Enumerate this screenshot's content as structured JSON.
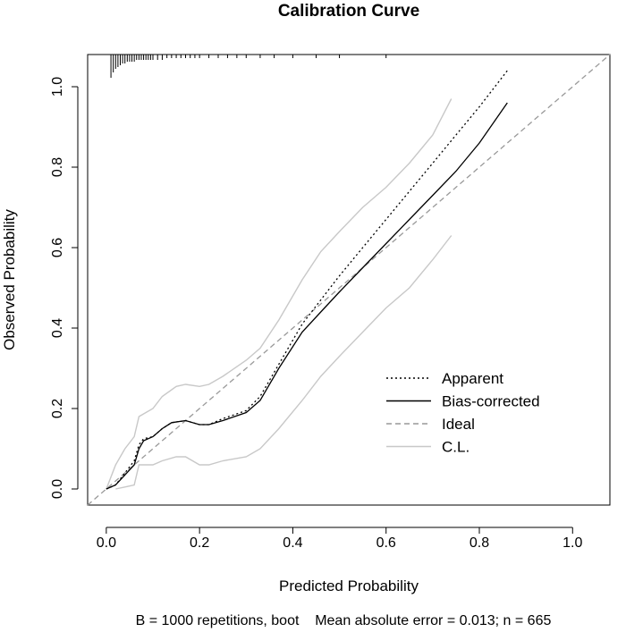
{
  "chart_data": {
    "type": "line",
    "title": "Calibration Curve",
    "xlabel": "Predicted Probability",
    "ylabel": "Observed Probability",
    "subtitle": "B = 1000 repetitions, boot    Mean absolute error = 0.013; n = 665",
    "xlim": [
      -0.04,
      1.08
    ],
    "ylim": [
      -0.04,
      1.08
    ],
    "x_ticks": [
      "0.0",
      "0.2",
      "0.4",
      "0.6",
      "0.8",
      "1.0"
    ],
    "y_ticks": [
      "0.0",
      "0.2",
      "0.4",
      "0.6",
      "0.8",
      "1.0"
    ],
    "grid": false,
    "legend_position": "bottom-right",
    "series": [
      {
        "name": "Apparent",
        "style": "dotted",
        "color": "#000000",
        "x": [
          0.0,
          0.02,
          0.04,
          0.06,
          0.07,
          0.08,
          0.1,
          0.12,
          0.14,
          0.17,
          0.2,
          0.22,
          0.25,
          0.3,
          0.33,
          0.37,
          0.42,
          0.46,
          0.5,
          0.55,
          0.6,
          0.65,
          0.7,
          0.75,
          0.8,
          0.86
        ],
        "y": [
          0.0,
          0.01,
          0.04,
          0.07,
          0.11,
          0.125,
          0.13,
          0.15,
          0.165,
          0.17,
          0.16,
          0.16,
          0.175,
          0.195,
          0.23,
          0.31,
          0.41,
          0.47,
          0.53,
          0.6,
          0.67,
          0.74,
          0.81,
          0.88,
          0.95,
          1.04
        ]
      },
      {
        "name": "Bias-corrected",
        "style": "solid",
        "color": "#000000",
        "x": [
          0.0,
          0.02,
          0.04,
          0.06,
          0.07,
          0.08,
          0.1,
          0.12,
          0.14,
          0.17,
          0.2,
          0.22,
          0.25,
          0.3,
          0.33,
          0.37,
          0.42,
          0.46,
          0.5,
          0.55,
          0.6,
          0.65,
          0.7,
          0.75,
          0.8,
          0.86
        ],
        "y": [
          0.0,
          0.01,
          0.035,
          0.06,
          0.1,
          0.12,
          0.13,
          0.15,
          0.165,
          0.17,
          0.16,
          0.16,
          0.17,
          0.19,
          0.22,
          0.3,
          0.39,
          0.44,
          0.49,
          0.55,
          0.61,
          0.67,
          0.73,
          0.79,
          0.86,
          0.96
        ]
      },
      {
        "name": "Ideal",
        "style": "dashed",
        "color": "#999999",
        "x": [
          -0.04,
          1.08
        ],
        "y": [
          -0.04,
          1.08
        ]
      },
      {
        "name": "C.L.",
        "style": "solid",
        "color": "#c8c8c8",
        "x": [
          0.0,
          0.02,
          0.04,
          0.06,
          0.07,
          0.1,
          0.12,
          0.15,
          0.17,
          0.2,
          0.22,
          0.25,
          0.3,
          0.33,
          0.37,
          0.42,
          0.46,
          0.5,
          0.55,
          0.6,
          0.65,
          0.7,
          0.74
        ],
        "y": [
          0.0,
          0.06,
          0.1,
          0.13,
          0.18,
          0.2,
          0.23,
          0.255,
          0.26,
          0.255,
          0.26,
          0.28,
          0.32,
          0.35,
          0.42,
          0.52,
          0.59,
          0.64,
          0.7,
          0.75,
          0.81,
          0.88,
          0.97
        ]
      },
      {
        "name": "C.L.",
        "style": "solid",
        "color": "#c8c8c8",
        "x": [
          0.02,
          0.04,
          0.06,
          0.07,
          0.1,
          0.12,
          0.15,
          0.17,
          0.2,
          0.22,
          0.25,
          0.3,
          0.33,
          0.37,
          0.42,
          0.46,
          0.5,
          0.55,
          0.6,
          0.65,
          0.7,
          0.74
        ],
        "y": [
          0.0,
          0.005,
          0.01,
          0.06,
          0.06,
          0.07,
          0.08,
          0.08,
          0.06,
          0.06,
          0.07,
          0.08,
          0.1,
          0.15,
          0.22,
          0.28,
          0.33,
          0.39,
          0.45,
          0.5,
          0.57,
          0.63
        ]
      }
    ],
    "rug": {
      "position": "top",
      "x": [
        0.01,
        0.015,
        0.02,
        0.025,
        0.03,
        0.035,
        0.04,
        0.045,
        0.05,
        0.055,
        0.06,
        0.065,
        0.07,
        0.075,
        0.08,
        0.085,
        0.09,
        0.095,
        0.1,
        0.11,
        0.12,
        0.13,
        0.14,
        0.15,
        0.16,
        0.17,
        0.18,
        0.19,
        0.2,
        0.22,
        0.24,
        0.26,
        0.28,
        0.3,
        0.33,
        0.36,
        0.4,
        0.45,
        0.5,
        0.6
      ],
      "counts": [
        12,
        9,
        7,
        6,
        5,
        4,
        4,
        3,
        3,
        3,
        3,
        2,
        2,
        2,
        2,
        2,
        2,
        2,
        2,
        2,
        2,
        1,
        1,
        1,
        1,
        1,
        1,
        1,
        1,
        1,
        1,
        1,
        1,
        1,
        1,
        1,
        1,
        1,
        1,
        1
      ]
    }
  }
}
